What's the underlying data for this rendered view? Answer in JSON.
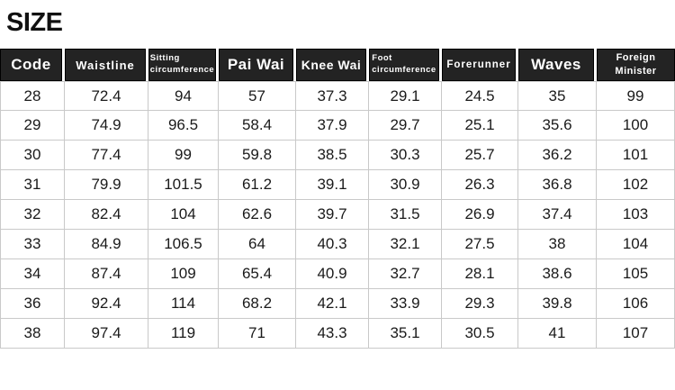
{
  "page": {
    "title": "SIZE"
  },
  "colors": {
    "header_bg": "#232323",
    "header_text": "#ffffff",
    "grid_line": "#c9c9c9",
    "body_text": "#1a1a1a",
    "title": "#111111"
  },
  "table": {
    "columns": [
      {
        "id": "code",
        "label": "Code"
      },
      {
        "id": "waistline",
        "label": "Waistline"
      },
      {
        "id": "sitting-circumference",
        "label": "Sitting circumference",
        "lines": [
          "Sitting",
          "circumference"
        ]
      },
      {
        "id": "pai-wai",
        "label": "Pai Wai"
      },
      {
        "id": "knee-wai",
        "label": "Knee Wai"
      },
      {
        "id": "foot-circumference",
        "label": "Foot circumference",
        "lines": [
          "Foot",
          "circumference"
        ]
      },
      {
        "id": "forerunner",
        "label": "Forerunner"
      },
      {
        "id": "waves",
        "label": "Waves"
      },
      {
        "id": "foreign-minister",
        "label": "Foreign Minister",
        "lines": [
          "Foreign",
          "Minister"
        ]
      }
    ],
    "rows": [
      [
        "28",
        "72.4",
        "94",
        "57",
        "37.3",
        "29.1",
        "24.5",
        "35",
        "99"
      ],
      [
        "29",
        "74.9",
        "96.5",
        "58.4",
        "37.9",
        "29.7",
        "25.1",
        "35.6",
        "100"
      ],
      [
        "30",
        "77.4",
        "99",
        "59.8",
        "38.5",
        "30.3",
        "25.7",
        "36.2",
        "101"
      ],
      [
        "31",
        "79.9",
        "101.5",
        "61.2",
        "39.1",
        "30.9",
        "26.3",
        "36.8",
        "102"
      ],
      [
        "32",
        "82.4",
        "104",
        "62.6",
        "39.7",
        "31.5",
        "26.9",
        "37.4",
        "103"
      ],
      [
        "33",
        "84.9",
        "106.5",
        "64",
        "40.3",
        "32.1",
        "27.5",
        "38",
        "104"
      ],
      [
        "34",
        "87.4",
        "109",
        "65.4",
        "40.9",
        "32.7",
        "28.1",
        "38.6",
        "105"
      ],
      [
        "36",
        "92.4",
        "114",
        "68.2",
        "42.1",
        "33.9",
        "29.3",
        "39.8",
        "106"
      ],
      [
        "38",
        "97.4",
        "119",
        "71",
        "43.3",
        "35.1",
        "30.5",
        "41",
        "107"
      ]
    ]
  }
}
